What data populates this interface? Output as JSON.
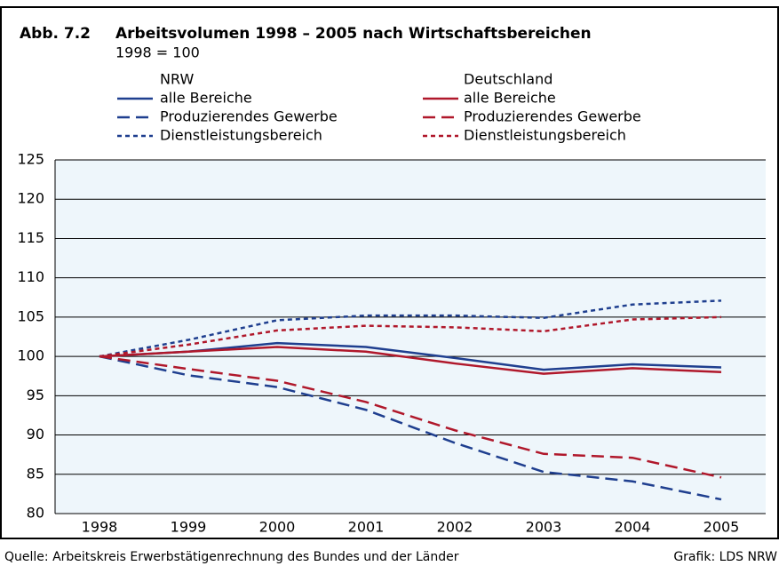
{
  "chart_data": {
    "type": "line",
    "label": "Abb. 7.2",
    "title": "Arbeitsvolumen 1998 – 2005 nach Wirtschaftsbereichen",
    "subtitle": "1998 = 100",
    "categories": [
      "1998",
      "1999",
      "2000",
      "2001",
      "2002",
      "2003",
      "2004",
      "2005"
    ],
    "groups": [
      {
        "title": "NRW",
        "color": "#1f3f8f",
        "series": [
          {
            "name": "alle Bereiche",
            "dash": "solid",
            "values": [
              100,
              100.6,
              101.7,
              101.2,
              99.8,
              98.3,
              99.0,
              98.6
            ]
          },
          {
            "name": "Produzierendes Gewerbe",
            "dash": "dashed",
            "values": [
              100,
              97.6,
              96.1,
              93.2,
              89.0,
              85.3,
              84.1,
              81.8
            ]
          },
          {
            "name": "Dienstleistungsbereich",
            "dash": "dotted",
            "values": [
              100,
              102.1,
              104.6,
              105.2,
              105.2,
              104.9,
              106.6,
              107.1
            ]
          }
        ]
      },
      {
        "title": "Deutschland",
        "color": "#b0182b",
        "series": [
          {
            "name": "alle Bereiche",
            "dash": "solid",
            "values": [
              100,
              100.6,
              101.2,
              100.6,
              99.1,
              97.8,
              98.5,
              98.0
            ]
          },
          {
            "name": "Produzierendes Gewerbe",
            "dash": "dashed",
            "values": [
              100,
              98.4,
              96.9,
              94.2,
              90.6,
              87.6,
              87.1,
              84.6
            ]
          },
          {
            "name": "Dienstleistungsbereich",
            "dash": "dotted",
            "values": [
              100,
              101.5,
              103.3,
              103.9,
              103.7,
              103.2,
              104.7,
              105.0
            ]
          }
        ]
      }
    ],
    "ylim": [
      80,
      125
    ],
    "yticks": [
      80,
      85,
      90,
      95,
      100,
      105,
      110,
      115,
      120,
      125
    ],
    "grid": true,
    "background": "#eef6fb",
    "source": "Quelle: Arbeitskreis Erwerbstätigenrechnung des Bundes und der Länder",
    "credit": "Grafik: LDS NRW"
  }
}
